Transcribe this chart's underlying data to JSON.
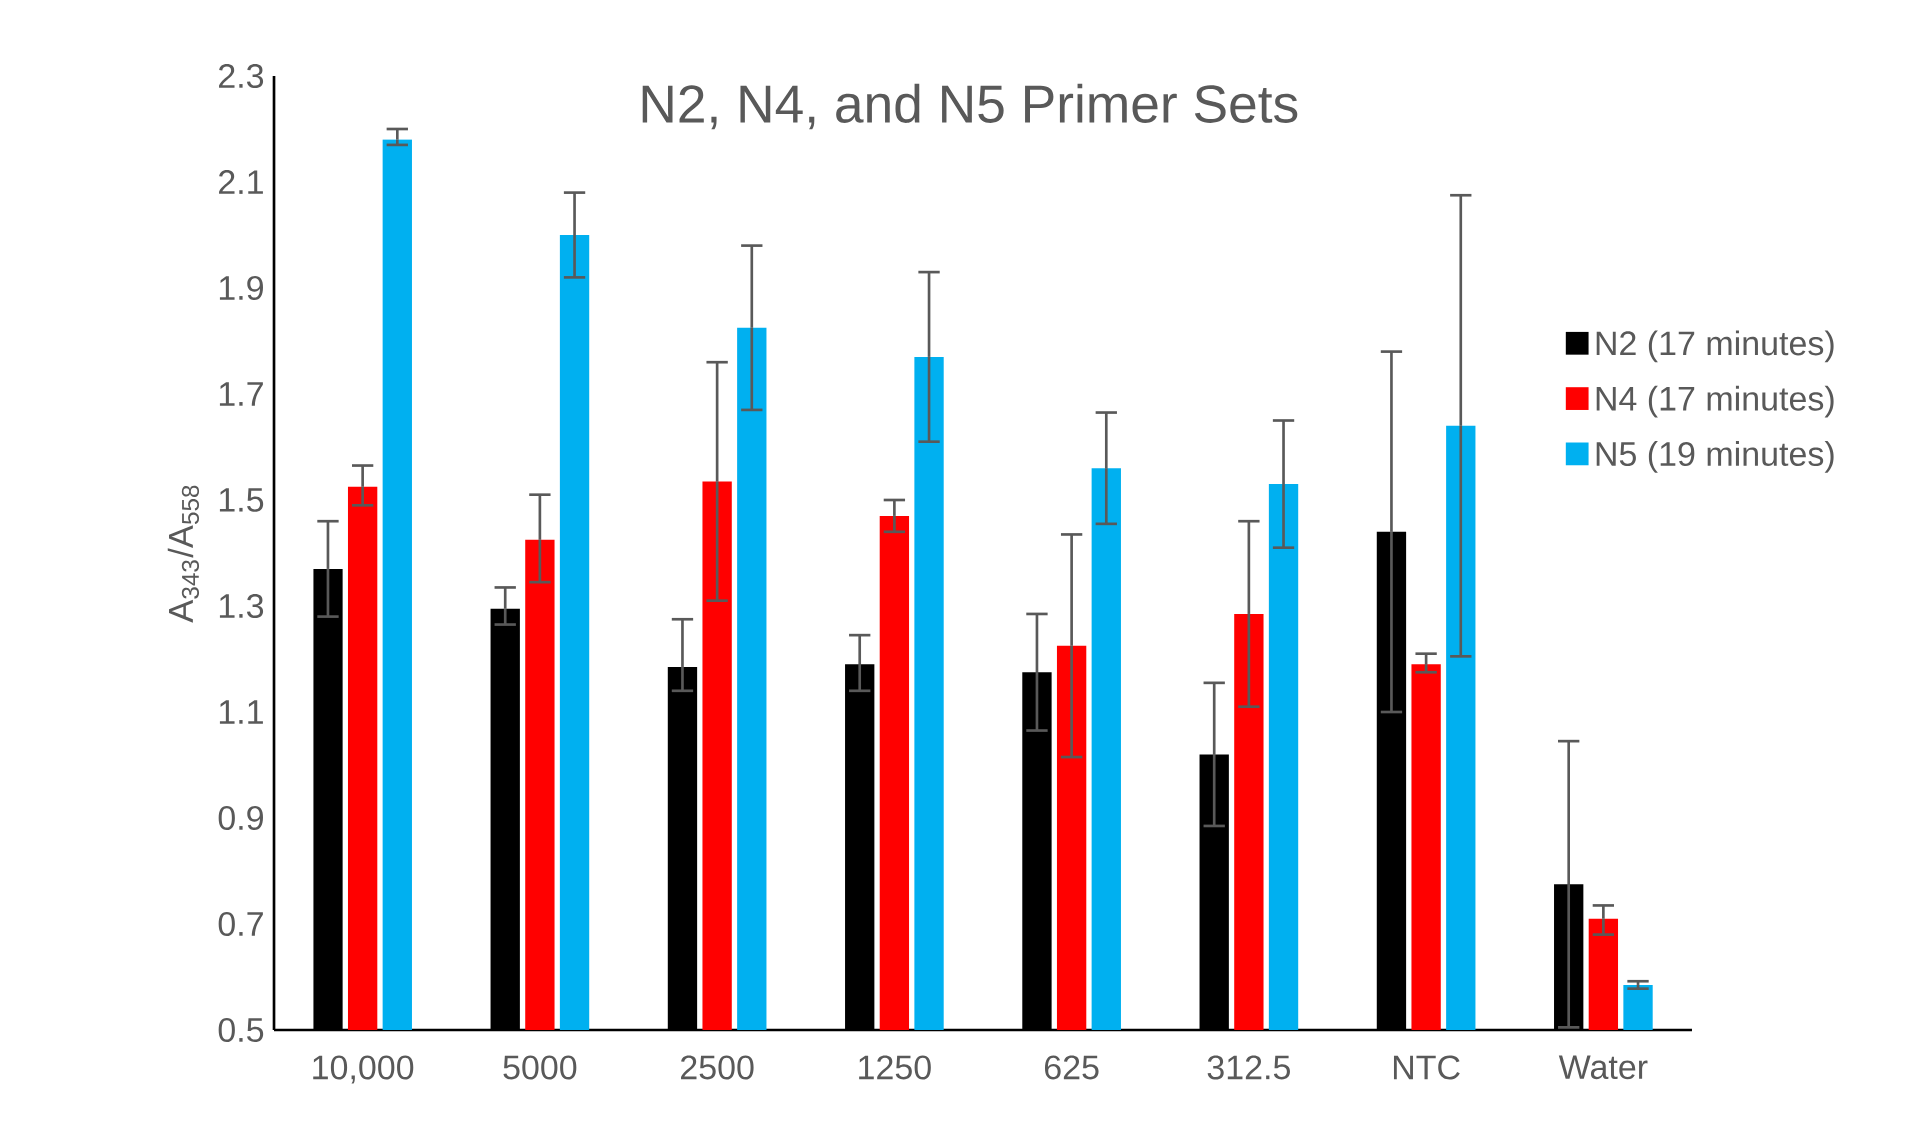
{
  "chart_data": {
    "type": "bar",
    "title": "N2, N4, and N5 Primer Sets",
    "ylabel": "A$_{343}$/A$_{558}$",
    "categories": [
      "10,000",
      "5000",
      "2500",
      "1250",
      "625",
      "312.5",
      "NTC",
      "Water"
    ],
    "series": [
      {
        "name": "N2 (17 minutes)",
        "color": "#000000",
        "values": [
          1.37,
          1.295,
          1.185,
          1.19,
          1.175,
          1.02,
          1.44,
          0.775
        ],
        "errors": [
          [
            1.28,
            1.46
          ],
          [
            1.265,
            1.335
          ],
          [
            1.14,
            1.275
          ],
          [
            1.14,
            1.245
          ],
          [
            1.065,
            1.285
          ],
          [
            0.885,
            1.155
          ],
          [
            1.1,
            1.78
          ],
          [
            0.505,
            1.045
          ]
        ]
      },
      {
        "name": "N4 (17 minutes)",
        "color": "#ff0000",
        "values": [
          1.525,
          1.425,
          1.535,
          1.47,
          1.225,
          1.285,
          1.19,
          0.71
        ],
        "errors": [
          [
            1.49,
            1.565
          ],
          [
            1.345,
            1.51
          ],
          [
            1.31,
            1.76
          ],
          [
            1.44,
            1.5
          ],
          [
            1.015,
            1.435
          ],
          [
            1.11,
            1.46
          ],
          [
            1.175,
            1.21
          ],
          [
            0.68,
            0.735
          ]
        ]
      },
      {
        "name": "N5 (19 minutes)",
        "color": "#00b0f0",
        "values": [
          2.18,
          2.0,
          1.825,
          1.77,
          1.56,
          1.53,
          1.64,
          0.585
        ],
        "errors": [
          [
            2.17,
            2.2
          ],
          [
            1.92,
            2.08
          ],
          [
            1.67,
            1.98
          ],
          [
            1.61,
            1.93
          ],
          [
            1.455,
            1.665
          ],
          [
            1.41,
            1.65
          ],
          [
            1.205,
            2.075
          ],
          [
            0.578,
            0.592
          ]
        ]
      }
    ],
    "ylim": [
      0.5,
      2.3
    ],
    "yticks": [
      0.5,
      0.7,
      0.9,
      1.1,
      1.3,
      1.5,
      1.7,
      1.9,
      2.1,
      2.3
    ],
    "grid": false,
    "legend": "right"
  }
}
